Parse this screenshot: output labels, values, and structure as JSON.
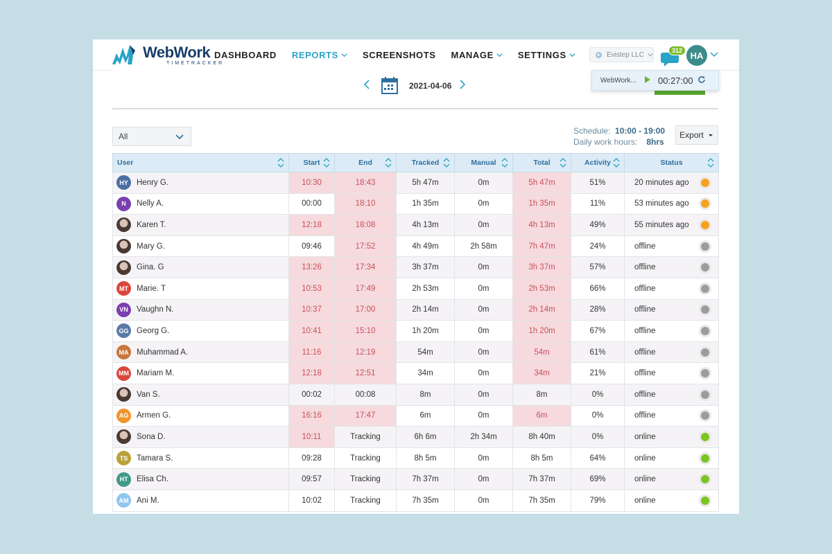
{
  "brand": {
    "name": "WebWork",
    "sub": "TIMETRACKER"
  },
  "nav": [
    {
      "label": "DASHBOARD",
      "active": false,
      "dropdown": false
    },
    {
      "label": "REPORTS",
      "active": true,
      "dropdown": true
    },
    {
      "label": "SCREENSHOTS",
      "active": false,
      "dropdown": false
    },
    {
      "label": "MANAGE",
      "active": false,
      "dropdown": true
    },
    {
      "label": "SETTINGS",
      "active": false,
      "dropdown": true
    }
  ],
  "company": "Evistep LLC",
  "notifications": {
    "count": "312"
  },
  "user": {
    "initials": "HA"
  },
  "timer": {
    "task": "WebWork...",
    "time": "00:27:00"
  },
  "date": {
    "value": "2021-04-06"
  },
  "filter": {
    "value": "All"
  },
  "schedule": {
    "label": "Schedule:",
    "value": "10:00 - 19:00",
    "hours_label": "Daily work hours:",
    "hours_value": "8hrs"
  },
  "export_label": "Export",
  "table": {
    "headers": [
      "User",
      "Start",
      "End",
      "Tracked",
      "Manual",
      "Total",
      "Activity",
      "Status"
    ],
    "rows": [
      {
        "user": "Henry G.",
        "initials": "HY",
        "color": "#4b6fa3",
        "photo": false,
        "start": "10:30",
        "end": "18:43",
        "tracked": "5h 47m",
        "manual": "0m",
        "total": "5h 47m",
        "activity": "51%",
        "status": "20 minutes ago",
        "state": "away",
        "late_start": true,
        "late_end": true,
        "late_total": true
      },
      {
        "user": "Nelly A.",
        "initials": "N",
        "color": "#7a3fb0",
        "photo": false,
        "start": "00:00",
        "end": "18:10",
        "tracked": "1h 35m",
        "manual": "0m",
        "total": "1h 35m",
        "activity": "11%",
        "status": "53 minutes ago",
        "state": "away",
        "late_start": false,
        "late_end": true,
        "late_total": true
      },
      {
        "user": "Karen T.",
        "initials": "",
        "color": "#6a3050",
        "photo": true,
        "start": "12:18",
        "end": "18:08",
        "tracked": "4h 13m",
        "manual": "0m",
        "total": "4h 13m",
        "activity": "49%",
        "status": "55 minutes ago",
        "state": "away",
        "late_start": true,
        "late_end": true,
        "late_total": true
      },
      {
        "user": "Mary G.",
        "initials": "",
        "color": "#8a7060",
        "photo": true,
        "start": "09:46",
        "end": "17:52",
        "tracked": "4h 49m",
        "manual": "2h 58m",
        "total": "7h 47m",
        "activity": "24%",
        "status": "offline",
        "state": "offline",
        "late_start": false,
        "late_end": true,
        "late_total": true
      },
      {
        "user": "Gina. G",
        "initials": "",
        "color": "#5a4035",
        "photo": true,
        "start": "13:26",
        "end": "17:34",
        "tracked": "3h 37m",
        "manual": "0m",
        "total": "3h 37m",
        "activity": "57%",
        "status": "offline",
        "state": "offline",
        "late_start": true,
        "late_end": true,
        "late_total": true
      },
      {
        "user": "Marie. T",
        "initials": "MT",
        "color": "#d9473c",
        "photo": false,
        "start": "10:53",
        "end": "17:49",
        "tracked": "2h 53m",
        "manual": "0m",
        "total": "2h 53m",
        "activity": "66%",
        "status": "offline",
        "state": "offline",
        "late_start": true,
        "late_end": true,
        "late_total": true
      },
      {
        "user": "Vaughn N.",
        "initials": "VN",
        "color": "#7a3fb0",
        "photo": false,
        "start": "10:37",
        "end": "17:00",
        "tracked": "2h 14m",
        "manual": "0m",
        "total": "2h 14m",
        "activity": "28%",
        "status": "offline",
        "state": "offline",
        "late_start": true,
        "late_end": true,
        "late_total": true
      },
      {
        "user": "Georg G.",
        "initials": "GG",
        "color": "#5b7aa8",
        "photo": false,
        "start": "10:41",
        "end": "15:10",
        "tracked": "1h 20m",
        "manual": "0m",
        "total": "1h 20m",
        "activity": "67%",
        "status": "offline",
        "state": "offline",
        "late_start": true,
        "late_end": true,
        "late_total": true
      },
      {
        "user": "Muhammad A.",
        "initials": "MA",
        "color": "#c8763a",
        "photo": false,
        "start": "11:16",
        "end": "12:19",
        "tracked": "54m",
        "manual": "0m",
        "total": "54m",
        "activity": "61%",
        "status": "offline",
        "state": "offline",
        "late_start": true,
        "late_end": true,
        "late_total": true
      },
      {
        "user": "Mariam M.",
        "initials": "MM",
        "color": "#d9473c",
        "photo": false,
        "start": "12:18",
        "end": "12:51",
        "tracked": "34m",
        "manual": "0m",
        "total": "34m",
        "activity": "21%",
        "status": "offline",
        "state": "offline",
        "late_start": true,
        "late_end": true,
        "late_total": true
      },
      {
        "user": "Van S.",
        "initials": "",
        "color": "#3a4a3a",
        "photo": true,
        "start": "00:02",
        "end": "00:08",
        "tracked": "8m",
        "manual": "0m",
        "total": "8m",
        "activity": "0%",
        "status": "offline",
        "state": "offline",
        "late_start": false,
        "late_end": false,
        "late_total": false
      },
      {
        "user": "Armen G.",
        "initials": "AG",
        "color": "#f0952c",
        "photo": false,
        "start": "16:16",
        "end": "17:47",
        "tracked": "6m",
        "manual": "0m",
        "total": "6m",
        "activity": "0%",
        "status": "offline",
        "state": "offline",
        "late_start": true,
        "late_end": true,
        "late_total": true
      },
      {
        "user": "Sona D.",
        "initials": "",
        "color": "#5a4a40",
        "photo": true,
        "start": "10:11",
        "end": "Tracking",
        "tracked": "6h 6m",
        "manual": "2h 34m",
        "total": "8h 40m",
        "activity": "0%",
        "status": "online",
        "state": "online",
        "late_start": true,
        "late_end": false,
        "late_total": false
      },
      {
        "user": "Tamara S.",
        "initials": "TS",
        "color": "#b8a23a",
        "photo": false,
        "start": "09:28",
        "end": "Tracking",
        "tracked": "8h 5m",
        "manual": "0m",
        "total": "8h 5m",
        "activity": "64%",
        "status": "online",
        "state": "online",
        "late_start": false,
        "late_end": false,
        "late_total": false
      },
      {
        "user": "Elisa Ch.",
        "initials": "HT",
        "color": "#3f9a86",
        "photo": false,
        "start": "09:57",
        "end": "Tracking",
        "tracked": "7h 37m",
        "manual": "0m",
        "total": "7h 37m",
        "activity": "69%",
        "status": "online",
        "state": "online",
        "late_start": false,
        "late_end": false,
        "late_total": false
      },
      {
        "user": "Ani M.",
        "initials": "AM",
        "color": "#8ec7ee",
        "photo": false,
        "start": "10:02",
        "end": "Tracking",
        "tracked": "7h 35m",
        "manual": "0m",
        "total": "7h 35m",
        "activity": "79%",
        "status": "online",
        "state": "online",
        "late_start": false,
        "late_end": false,
        "late_total": false
      }
    ]
  }
}
